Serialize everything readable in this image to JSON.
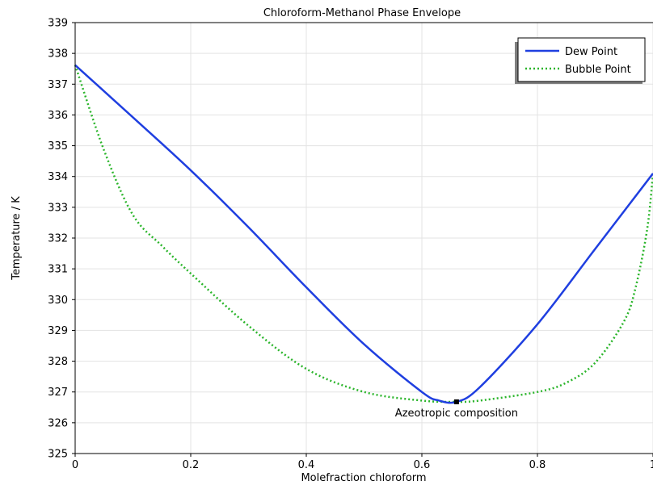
{
  "chart_data": {
    "type": "line",
    "title": "Chloroform-Methanol Phase Envelope",
    "xlabel": "Molefraction chloroform",
    "ylabel": "Temperature / K",
    "xlim": [
      0,
      1
    ],
    "ylim": [
      325,
      339
    ],
    "grid": true,
    "legend_position": "top-right",
    "xticks": [
      "0",
      "0.2",
      "0.4",
      "0.6",
      "0.8",
      "1"
    ],
    "yticks": [
      "325",
      "326",
      "327",
      "328",
      "329",
      "330",
      "331",
      "332",
      "333",
      "334",
      "335",
      "336",
      "337",
      "338",
      "339"
    ],
    "series": [
      {
        "name": "Dew Point",
        "color": "#1f3fe0",
        "style": "solid",
        "x": [
          0,
          0.1,
          0.2,
          0.3,
          0.4,
          0.5,
          0.6,
          0.63,
          0.66,
          0.7,
          0.8,
          0.9,
          1.0
        ],
        "y": [
          337.62,
          335.92,
          334.2,
          332.35,
          330.4,
          328.55,
          327.0,
          326.72,
          326.68,
          327.15,
          329.2,
          331.65,
          334.1
        ]
      },
      {
        "name": "Bubble Point",
        "color": "#2bb52b",
        "style": "dotted",
        "x": [
          0,
          0.05,
          0.1,
          0.15,
          0.2,
          0.3,
          0.4,
          0.5,
          0.6,
          0.66,
          0.7,
          0.8,
          0.85,
          0.9,
          0.95,
          0.97,
          0.99,
          1.0
        ],
        "y": [
          337.62,
          334.85,
          332.75,
          331.75,
          330.85,
          329.15,
          327.75,
          327.0,
          326.72,
          326.68,
          326.72,
          327.0,
          327.3,
          327.95,
          329.3,
          330.4,
          332.3,
          334.1
        ]
      }
    ],
    "annotation": {
      "text": "Azeotropic composition",
      "x": 0.66,
      "y": 326.68
    }
  }
}
